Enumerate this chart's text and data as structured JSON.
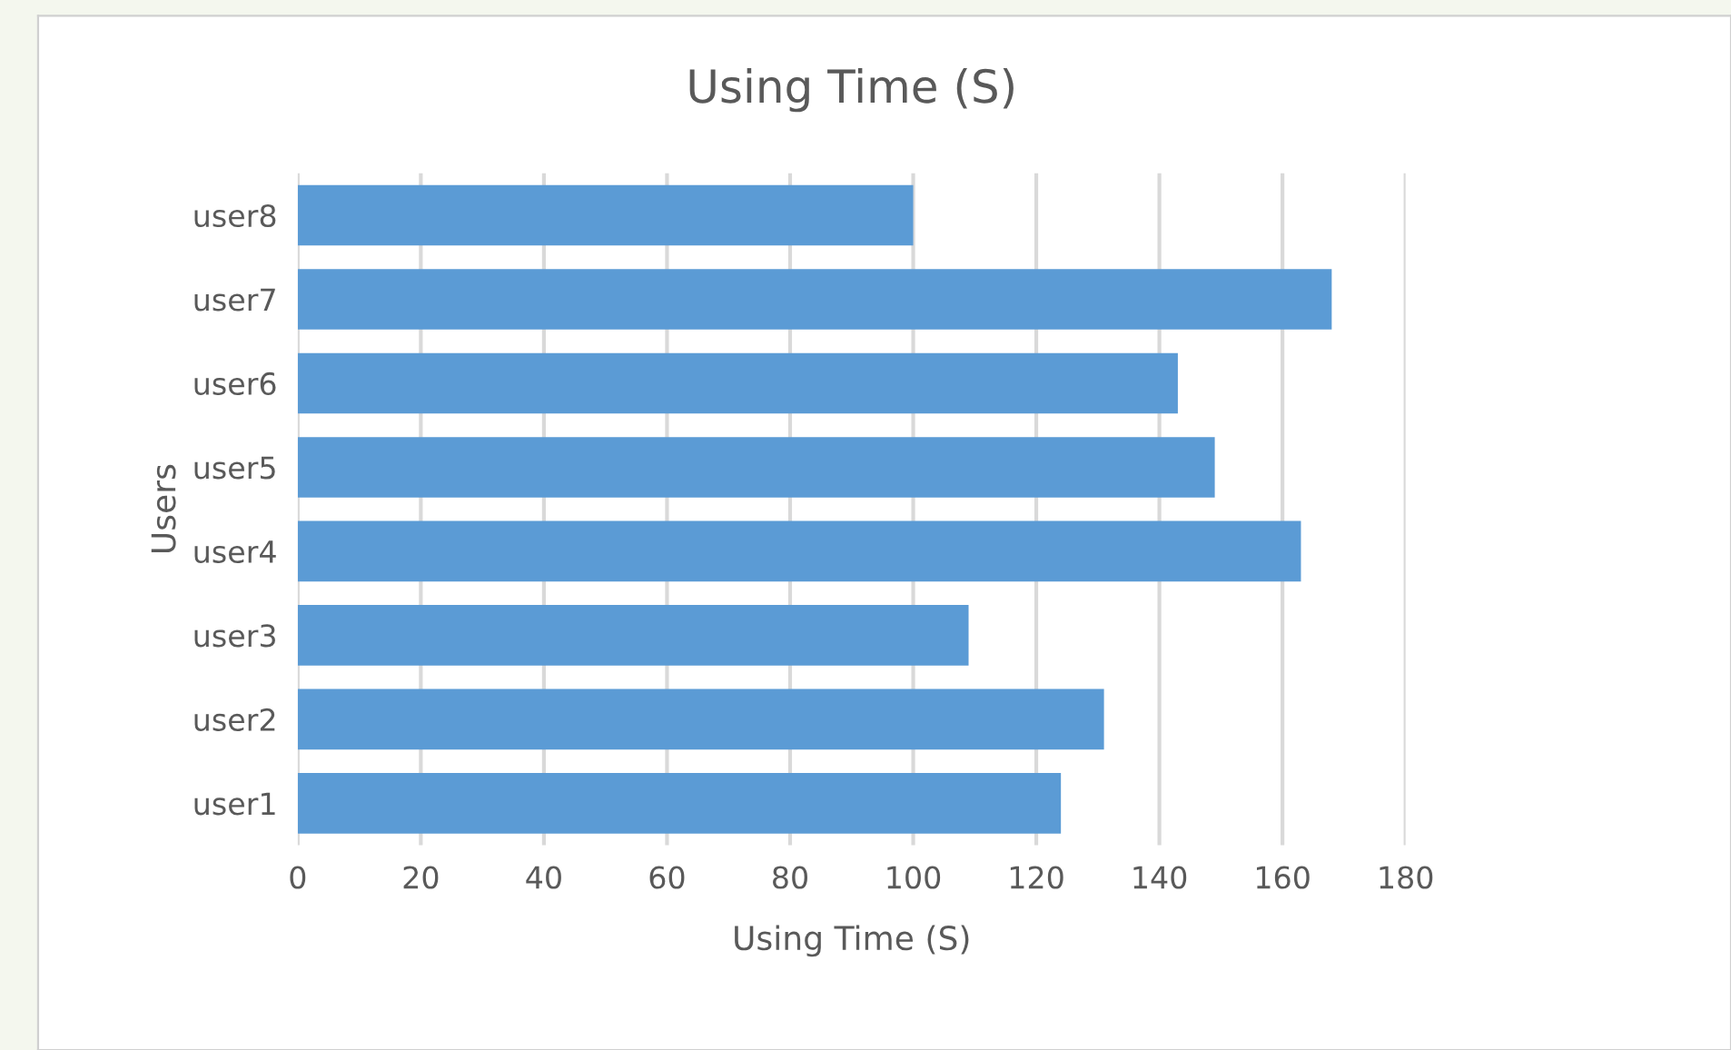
{
  "chart_data": {
    "type": "bar",
    "orientation": "horizontal",
    "title": "Using Time (S)",
    "xlabel": "Using Time (S)",
    "ylabel": "Users",
    "categories": [
      "user8",
      "user7",
      "user6",
      "user5",
      "user4",
      "user3",
      "user2",
      "user1"
    ],
    "values": [
      100,
      168,
      143,
      149,
      163,
      109,
      131,
      124
    ],
    "color": "#5b9bd5",
    "xlim": [
      0,
      180
    ],
    "xticks": [
      0,
      20,
      40,
      60,
      80,
      100,
      120,
      140,
      160,
      180
    ],
    "grid": "x",
    "legend": false
  }
}
